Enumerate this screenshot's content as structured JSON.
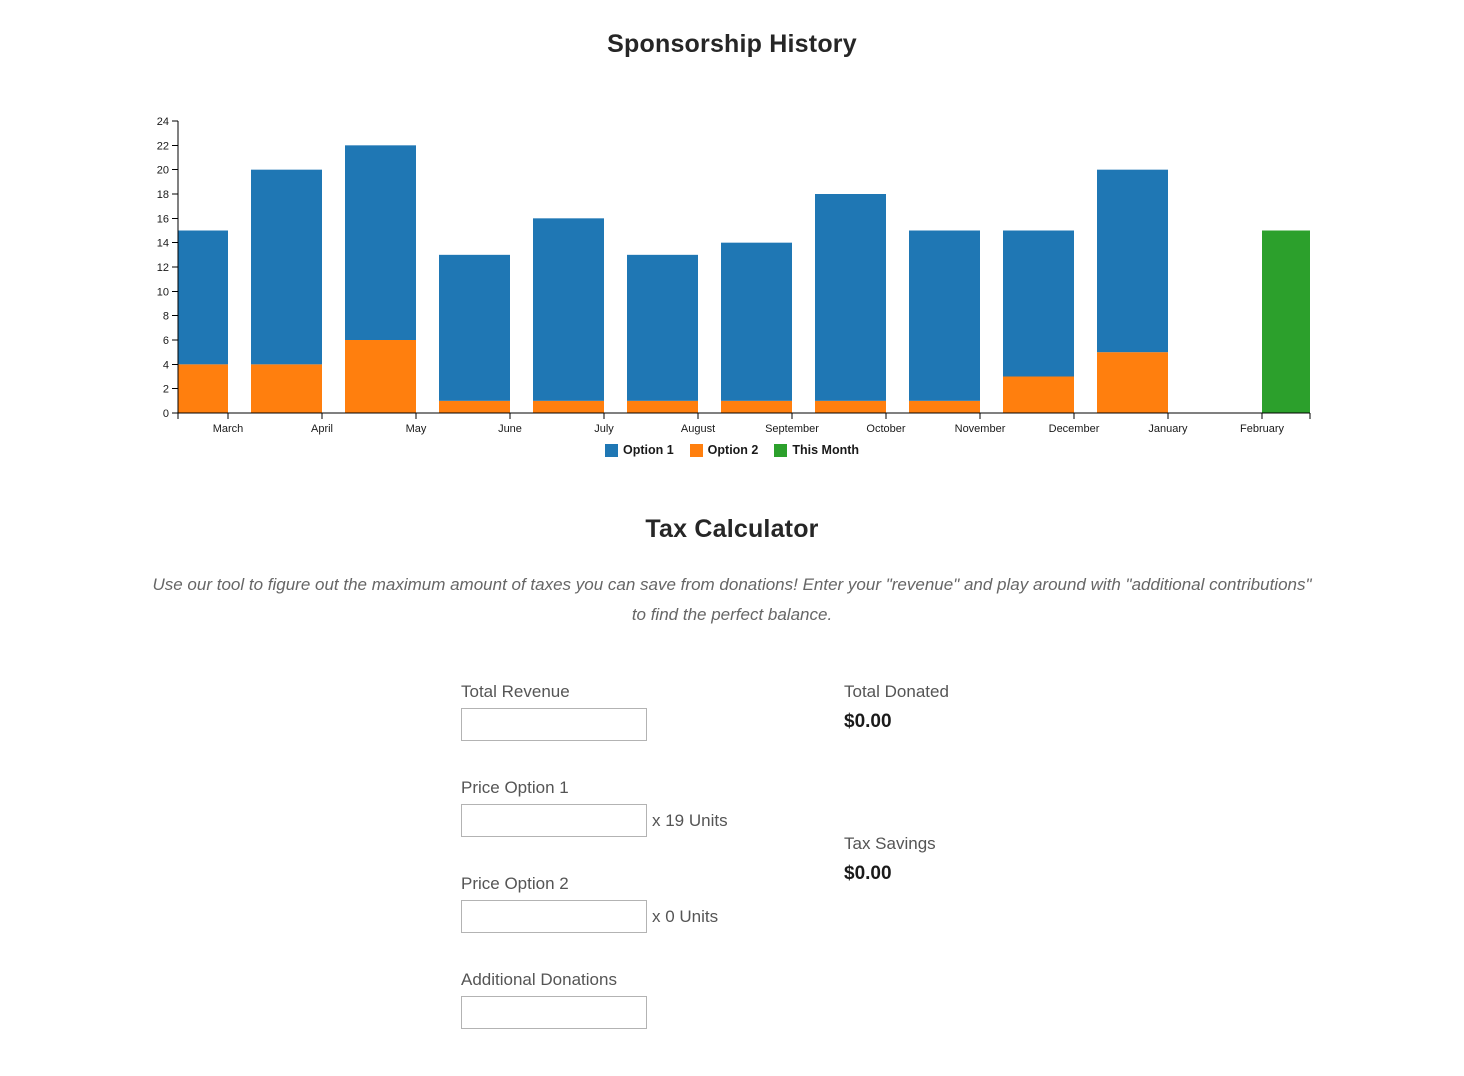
{
  "chart": {
    "title": "Sponsorship History",
    "chart_data": {
      "type": "bar",
      "stacked": true,
      "categories": [
        "March",
        "April",
        "May",
        "June",
        "July",
        "August",
        "September",
        "October",
        "November",
        "December",
        "January",
        "February"
      ],
      "series": [
        {
          "name": "Option 2",
          "color": "#ff7f0e",
          "values": [
            4,
            4,
            6,
            1,
            1,
            1,
            1,
            1,
            1,
            3,
            5,
            0
          ]
        },
        {
          "name": "Option 1",
          "color": "#1f77b4",
          "values": [
            11,
            16,
            16,
            12,
            15,
            12,
            13,
            17,
            14,
            12,
            15,
            0
          ]
        },
        {
          "name": "This Month",
          "color": "#2ca02c",
          "values": [
            0,
            0,
            0,
            0,
            0,
            0,
            0,
            0,
            0,
            0,
            0,
            15
          ]
        }
      ],
      "stack_totals": [
        15,
        20,
        22,
        13,
        16,
        13,
        14,
        18,
        15,
        15,
        20,
        15
      ],
      "legend": [
        {
          "label": "Option 1",
          "color": "#1f77b4"
        },
        {
          "label": "Option 2",
          "color": "#ff7f0e"
        },
        {
          "label": "This Month",
          "color": "#2ca02c"
        }
      ],
      "title": "Sponsorship History",
      "xlabel": "",
      "ylabel": "",
      "ylim": [
        0,
        24
      ],
      "ytick_step": 2,
      "grid": false,
      "legend_position": "bottom",
      "axis_color": "#000000",
      "tick_label_color": "#1a1a1a"
    }
  },
  "calculator": {
    "title": "Tax Calculator",
    "description": "Use our tool to figure out the maximum amount of taxes you can save from donations! Enter your \"revenue\" and play around with \"additional contributions\" to find the perfect balance.",
    "fields": [
      {
        "label": "Total Revenue",
        "value": "",
        "units": ""
      },
      {
        "label": "Price Option 1",
        "value": "",
        "units": "x 19 Units"
      },
      {
        "label": "Price Option 2",
        "value": "",
        "units": "x 0 Units"
      },
      {
        "label": "Additional Donations",
        "value": "",
        "units": ""
      }
    ],
    "outputs": [
      {
        "label": "Total Donated",
        "value": "$0.00"
      },
      {
        "label": "Tax Savings",
        "value": "$0.00"
      }
    ]
  }
}
